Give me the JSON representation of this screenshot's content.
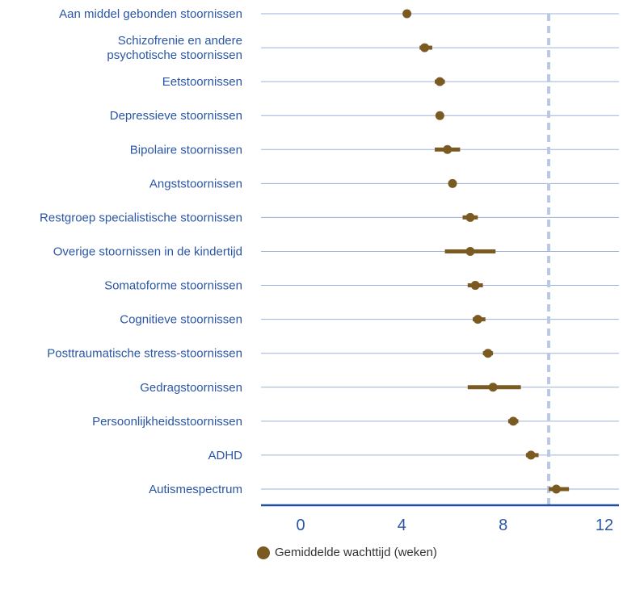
{
  "chart_data": {
    "type": "scatter",
    "categories": [
      "Aan middel gebonden stoornissen",
      "Schizofrenie en andere\npsychotische stoornissen",
      "Eetstoornissen",
      "Depressieve stoornissen",
      "Bipolaire stoornissen",
      "Angststoornissen",
      "Restgroep specialistische stoornissen",
      "Overige stoornissen in de kindertijd",
      "Somatoforme stoornissen",
      "Cognitieve stoornissen",
      "Posttraumatische stress-stoornissen",
      "Gedragstoornissen",
      "Persoonlijkheidsstoornissen",
      "ADHD",
      "Autismespectrum"
    ],
    "series": [
      {
        "name": "Gemiddelde wachttijd (weken)",
        "values": [
          4.2,
          4.9,
          5.5,
          5.5,
          5.8,
          6.0,
          6.7,
          6.7,
          6.9,
          7.0,
          7.4,
          7.6,
          8.4,
          9.1,
          10.1
        ],
        "ci_low": [
          4.2,
          4.7,
          5.3,
          5.5,
          5.3,
          6.0,
          6.4,
          5.7,
          6.6,
          6.8,
          7.2,
          6.6,
          8.2,
          8.9,
          9.8
        ],
        "ci_high": [
          4.2,
          5.2,
          5.7,
          5.5,
          6.3,
          6.0,
          7.0,
          7.7,
          7.2,
          7.3,
          7.6,
          8.7,
          8.6,
          9.4,
          10.6
        ]
      }
    ],
    "xticks": [
      "0",
      "4",
      "8",
      "12"
    ],
    "xlim": [
      -1.5,
      12
    ],
    "reference_line_x": 9.8,
    "legend_position": "bottom",
    "colors": {
      "marker": "#7b5a22",
      "text": "#2a56a5",
      "gridline": "#9bb0d8",
      "axis": "#1f4f9f",
      "reference_line": "#b8c8e6"
    }
  },
  "legend": {
    "label": "Gemiddelde wachttijd (weken)"
  }
}
